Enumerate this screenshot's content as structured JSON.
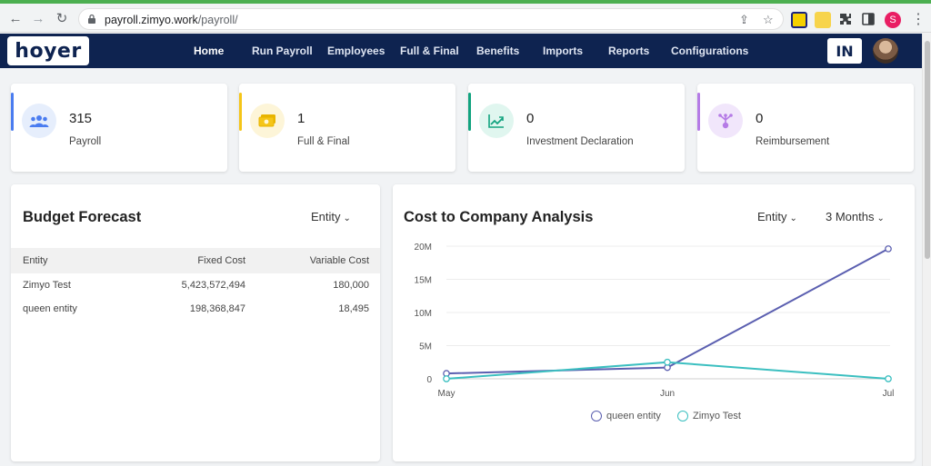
{
  "browser": {
    "url_domain": "payroll.zimyo.work",
    "url_path": "/payroll/",
    "profile_initial": "S"
  },
  "app": {
    "logo_text": "hoyer",
    "nav": [
      "Home",
      "Run Payroll",
      "Employees",
      "Full & Final",
      "Benefits",
      "Imports",
      "Reports",
      "Configurations"
    ],
    "active_nav": "Home",
    "language": "IN"
  },
  "stats": [
    {
      "value": "315",
      "label": "Payroll",
      "accent": "#4a7cf0",
      "icon_bg": "#e6eefc",
      "icon": "users-icon"
    },
    {
      "value": "1",
      "label": "Full & Final",
      "accent": "#f5c518",
      "icon_bg": "#fdf5d8",
      "icon": "money-icon"
    },
    {
      "value": "0",
      "label": "Investment Declaration",
      "accent": "#12a37f",
      "icon_bg": "#e0f6ef",
      "icon": "trend-up-icon"
    },
    {
      "value": "0",
      "label": "Reimbursement",
      "accent": "#b57be6",
      "icon_bg": "#f1e6fb",
      "icon": "reimburse-icon"
    }
  ],
  "budget": {
    "title": "Budget Forecast",
    "filter": "Entity",
    "columns": [
      "Entity",
      "Fixed Cost",
      "Variable Cost"
    ],
    "rows": [
      {
        "entity": "Zimyo Test",
        "fixed": "5,423,572,494",
        "variable": "180,000"
      },
      {
        "entity": "queen entity",
        "fixed": "198,368,847",
        "variable": "18,495"
      }
    ]
  },
  "ctc": {
    "title": "Cost to Company Analysis",
    "filter_entity": "Entity",
    "filter_period": "3 Months"
  },
  "chart_data": {
    "type": "line",
    "title": "Cost to Company Analysis",
    "x": [
      "May",
      "Jun",
      "Jul"
    ],
    "yticks": [
      "0",
      "5M",
      "10M",
      "15M",
      "20M"
    ],
    "ylim": [
      0,
      20000000
    ],
    "grid": true,
    "legend_position": "bottom",
    "series": [
      {
        "name": "queen entity",
        "color": "#5b5fb0",
        "values": [
          800000,
          1700000,
          19600000
        ]
      },
      {
        "name": "Zimyo Test",
        "color": "#3bbfc0",
        "values": [
          0,
          2500000,
          0
        ]
      }
    ]
  }
}
